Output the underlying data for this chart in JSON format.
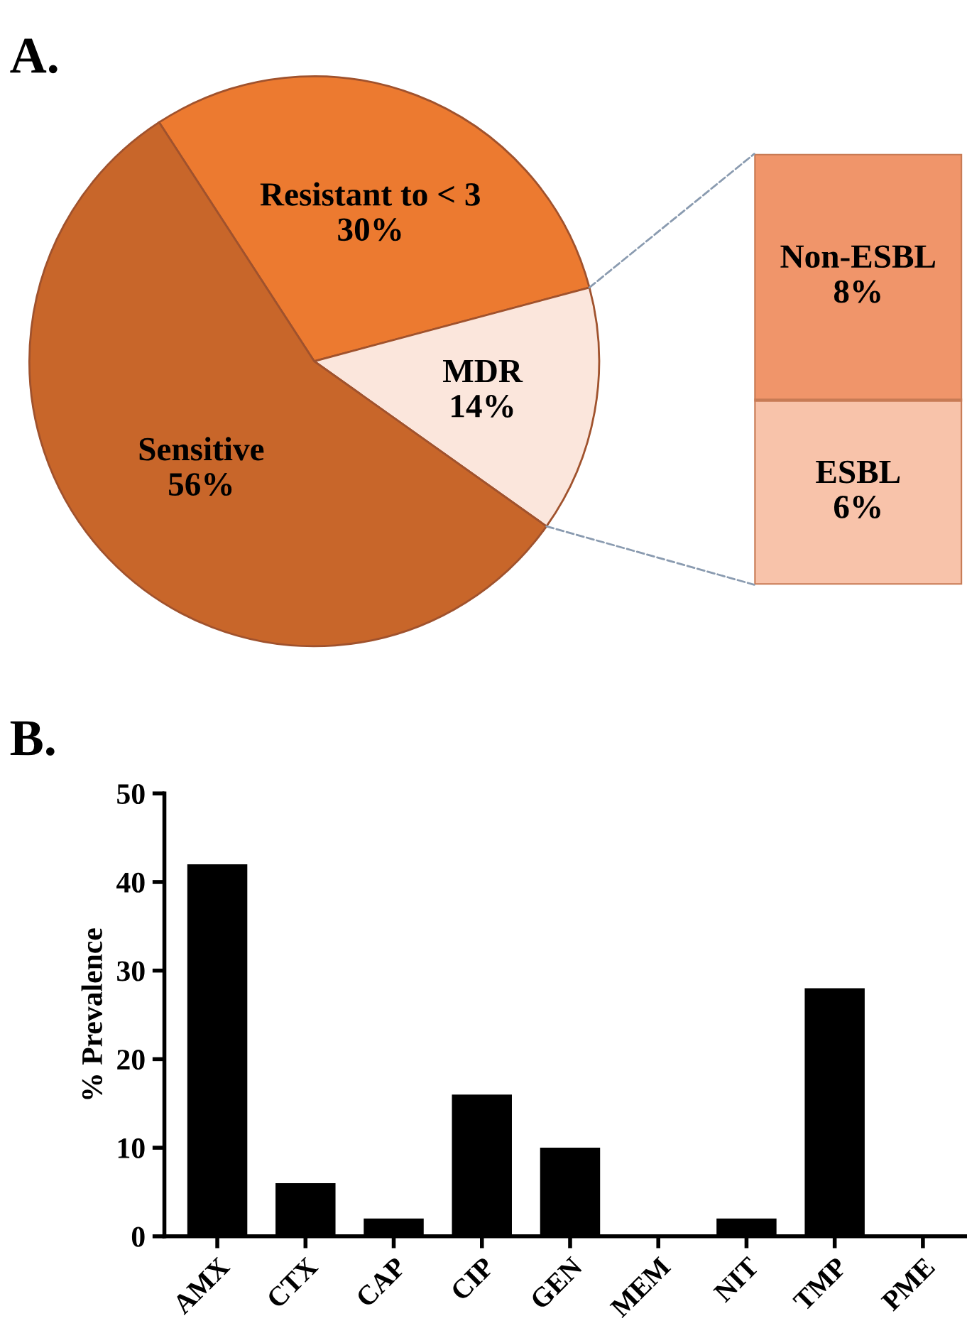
{
  "chart_data": [
    {
      "type": "pie",
      "title": "A.",
      "categories": [
        "Resistant to < 3",
        "MDR",
        "Sensitive"
      ],
      "values": [
        30,
        14,
        56
      ],
      "value_labels": [
        "30%",
        "14%",
        "56%"
      ],
      "colors": [
        "#ec7a30",
        "#fbe6dc",
        "#c8662a"
      ]
    },
    {
      "type": "bar",
      "stacked": true,
      "categories": [
        null
      ],
      "series": [
        {
          "name": "ESBL",
          "color": "#f8c3aa",
          "values": [
            6
          ],
          "value_labels": [
            "6%"
          ]
        },
        {
          "name": "Non-ESBL",
          "color": "#f0956a",
          "values": [
            8
          ],
          "value_labels": [
            "8%"
          ]
        }
      ]
    },
    {
      "type": "bar",
      "title": "B.",
      "ylabel": "% Prevalence",
      "categories": [
        "AMX",
        "CTX",
        "CAP",
        "CIP",
        "GEN",
        "MEM",
        "NIT",
        "TMP",
        "PME"
      ],
      "values": [
        42,
        6,
        2,
        16,
        10,
        0,
        2,
        28,
        0
      ],
      "color": "#000000",
      "ylim": [
        0,
        50
      ],
      "yticks": [
        0,
        10,
        20,
        30,
        40,
        50
      ],
      "grid": false,
      "legend": false
    }
  ]
}
